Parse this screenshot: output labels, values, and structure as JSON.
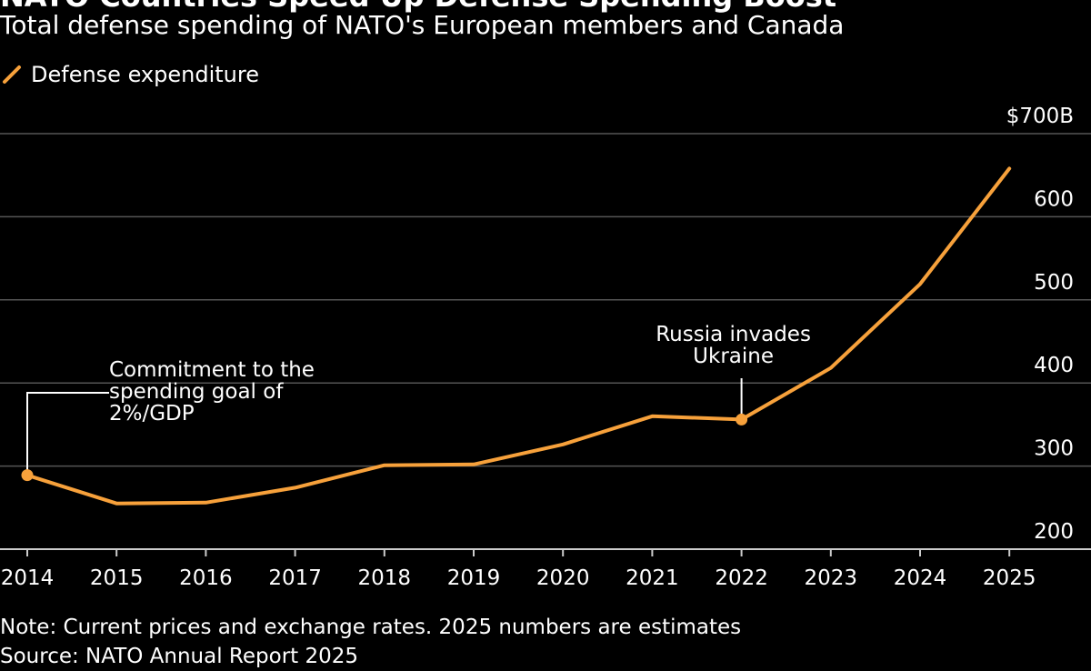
{
  "title": "NATO Countries Speed Up Defense Spending Boost",
  "subtitle": "Total defense spending of NATO's European members and Canada",
  "legend": {
    "label": "Defense expenditure",
    "icon": "slash-line-icon",
    "color": "#f7a13b"
  },
  "colors": {
    "background": "#000000",
    "line": "#f7a13b",
    "grid": "#555555",
    "text": "#ffffff"
  },
  "chart_data": {
    "type": "line",
    "title": "NATO Countries Speed Up Defense Spending Boost",
    "subtitle": "Total defense spending of NATO's European members and Canada",
    "xlabel": "",
    "ylabel": "",
    "x": [
      2014,
      2015,
      2016,
      2017,
      2018,
      2019,
      2020,
      2021,
      2022,
      2023,
      2024,
      2025
    ],
    "x_tick_labels": [
      "2014",
      "2015",
      "2016",
      "2017",
      "2018",
      "2019",
      "2020",
      "2021",
      "2022",
      "2023",
      "2024",
      "2025"
    ],
    "series": [
      {
        "name": "Defense expenditure",
        "values": [
          289,
          255,
          256,
          274,
          301,
          302,
          326,
          360,
          356,
          418,
          519,
          658
        ]
      }
    ],
    "ylim": [
      180,
      700
    ],
    "y_ticks": [
      200,
      300,
      400,
      500,
      600,
      700
    ],
    "y_tick_labels": [
      "200",
      "300",
      "400",
      "500",
      "600",
      "$700B"
    ],
    "grid": true,
    "legend_position": "top-left",
    "annotations": [
      {
        "x": 2014,
        "lines": [
          "Commitment to the",
          "spending goal of",
          "2%/GDP"
        ]
      },
      {
        "x": 2022,
        "lines": [
          "Russia invades",
          "Ukraine"
        ]
      }
    ]
  },
  "footnotes": {
    "note": "Note: Current prices and exchange rates. 2025 numbers are estimates",
    "source": "Source: NATO Annual Report 2025"
  }
}
